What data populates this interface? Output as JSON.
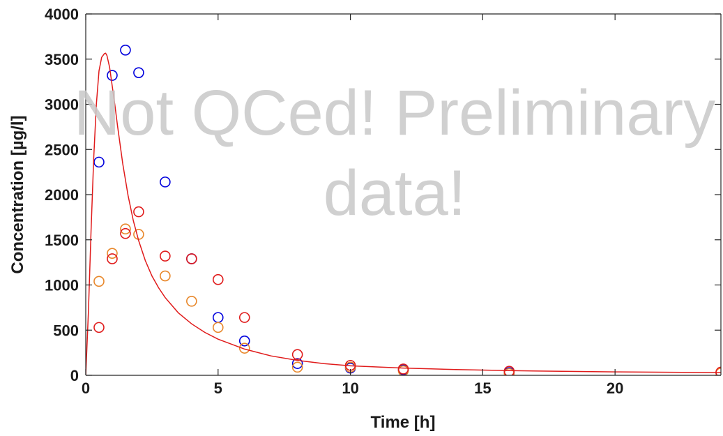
{
  "chart_data": {
    "type": "scatter",
    "title": "",
    "xlabel": "Time [h]",
    "ylabel": "Concentration [µg/l]",
    "xlim": [
      0,
      24
    ],
    "ylim": [
      0,
      4000
    ],
    "x_ticks": [
      0,
      5,
      10,
      15,
      20
    ],
    "y_ticks": [
      0,
      500,
      1000,
      1500,
      2000,
      2500,
      3000,
      3500,
      4000
    ],
    "grid": false,
    "watermark": [
      "Not QCed! Preliminary",
      "data!"
    ],
    "series": [
      {
        "marker": "open-circle",
        "color": "#0000dd",
        "x": [
          0.5,
          1,
          1.5,
          2,
          3,
          4,
          5,
          6,
          8,
          10,
          12,
          16,
          24
        ],
        "y": [
          2360,
          3320,
          3600,
          3350,
          2140,
          1290,
          640,
          380,
          130,
          80,
          60,
          30,
          30
        ]
      },
      {
        "marker": "open-circle",
        "color": "#e8872a",
        "x": [
          0.5,
          1,
          1.5,
          2,
          3,
          4,
          5,
          6,
          8,
          10,
          12,
          16,
          24
        ],
        "y": [
          1040,
          1350,
          1620,
          1560,
          1100,
          820,
          530,
          300,
          90,
          90,
          50,
          20,
          25
        ]
      },
      {
        "marker": "open-circle",
        "color": "#e01b1b",
        "x": [
          0.5,
          1,
          1.5,
          2,
          3,
          4,
          5,
          6,
          8,
          10,
          12,
          16,
          24
        ],
        "y": [
          530,
          1290,
          1570,
          1810,
          1320,
          1290,
          1060,
          640,
          230,
          110,
          70,
          45,
          35
        ]
      },
      {
        "marker": "line",
        "color": "#e01b1b",
        "x": [
          0,
          0.1,
          0.2,
          0.3,
          0.4,
          0.5,
          0.6,
          0.7,
          0.75,
          0.8,
          0.9,
          1.0,
          1.1,
          1.2,
          1.4,
          1.6,
          1.8,
          2.0,
          2.25,
          2.5,
          2.75,
          3.0,
          3.5,
          4.0,
          4.5,
          5.0,
          6.0,
          7.0,
          8.0,
          9.0,
          10.0,
          12.0,
          14.0,
          16.0,
          18.0,
          20.0,
          22.0,
          24.0
        ],
        "y": [
          0,
          700,
          1600,
          2400,
          3000,
          3370,
          3520,
          3560,
          3565,
          3540,
          3410,
          3200,
          2990,
          2760,
          2340,
          1990,
          1710,
          1490,
          1270,
          1100,
          970,
          860,
          690,
          570,
          475,
          400,
          290,
          215,
          165,
          130,
          105,
          80,
          63,
          52,
          44,
          38,
          34,
          30
        ]
      }
    ]
  }
}
